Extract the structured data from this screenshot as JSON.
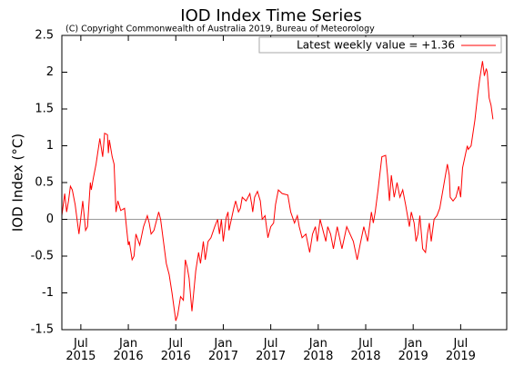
{
  "chart_data": {
    "type": "line",
    "title": "IOD Index Time Series",
    "subtitle": "(C) Copyright Commonwealth of Australia 2019, Bureau of Meteorology",
    "y_label": "IOD Index (°C)",
    "xlim": [
      2015.3,
      2019.985
    ],
    "ylim": [
      -1.5,
      2.5
    ],
    "yticks": [
      -1.5,
      -1,
      -0.5,
      0,
      0.5,
      1,
      1.5,
      2,
      2.5
    ],
    "xticks": [
      {
        "value": 2015.5,
        "label": "Jul 2015"
      },
      {
        "value": 2016.0,
        "label": "Jan 2016"
      },
      {
        "value": 2016.5,
        "label": "Jul 2016"
      },
      {
        "value": 2017.0,
        "label": "Jan 2017"
      },
      {
        "value": 2017.5,
        "label": "Jul 2017"
      },
      {
        "value": 2018.0,
        "label": "Jan 2018"
      },
      {
        "value": 2018.5,
        "label": "Jul 2018"
      },
      {
        "value": 2019.0,
        "label": "Jan 2019"
      },
      {
        "value": 2019.5,
        "label": "Jul 2019"
      }
    ],
    "zero_line": true,
    "legend": "top-right",
    "series": [
      {
        "name": "Latest weekly value = +1.36",
        "color": "#ff0000",
        "x": [
          2015.3,
          2015.33,
          2015.35,
          2015.37,
          2015.39,
          2015.41,
          2015.44,
          2015.48,
          2015.52,
          2015.55,
          2015.57,
          2015.6,
          2015.61,
          2015.63,
          2015.66,
          2015.7,
          2015.73,
          2015.75,
          2015.78,
          2015.79,
          2015.8,
          2015.83,
          2015.85,
          2015.87,
          2015.89,
          2015.92,
          2015.96,
          2016.0,
          2016.01,
          2016.04,
          2016.06,
          2016.08,
          2016.12,
          2016.16,
          2016.2,
          2016.22,
          2016.24,
          2016.27,
          2016.32,
          2016.34,
          2016.37,
          2016.4,
          2016.43,
          2016.46,
          2016.5,
          2016.52,
          2016.55,
          2016.58,
          2016.6,
          2016.62,
          2016.64,
          2016.67,
          2016.71,
          2016.74,
          2016.76,
          2016.79,
          2016.81,
          2016.84,
          2016.87,
          2016.91,
          2016.94,
          2016.96,
          2016.98,
          2017.0,
          2017.03,
          2017.05,
          2017.06,
          2017.11,
          2017.13,
          2017.16,
          2017.18,
          2017.2,
          2017.24,
          2017.28,
          2017.3,
          2017.31,
          2017.33,
          2017.36,
          2017.39,
          2017.41,
          2017.44,
          2017.47,
          2017.5,
          2017.53,
          2017.55,
          2017.58,
          2017.62,
          2017.68,
          2017.71,
          2017.75,
          2017.78,
          2017.8,
          2017.83,
          2017.87,
          2017.91,
          2017.94,
          2017.97,
          2017.99,
          2018.02,
          2018.05,
          2018.08,
          2018.1,
          2018.13,
          2018.16,
          2018.2,
          2018.25,
          2018.3,
          2018.37,
          2018.41,
          2018.44,
          2018.48,
          2018.52,
          2018.56,
          2018.58,
          2018.6,
          2018.63,
          2018.67,
          2018.71,
          2018.73,
          2018.75,
          2018.77,
          2018.8,
          2018.83,
          2018.86,
          2018.89,
          2018.92,
          2018.94,
          2018.96,
          2018.98,
          2019.01,
          2019.03,
          2019.05,
          2019.07,
          2019.1,
          2019.13,
          2019.15,
          2019.17,
          2019.19,
          2019.22,
          2019.25,
          2019.28,
          2019.32,
          2019.36,
          2019.38,
          2019.39,
          2019.42,
          2019.45,
          2019.48,
          2019.5,
          2019.52,
          2019.57,
          2019.58,
          2019.61,
          2019.65,
          2019.68,
          2019.7,
          2019.73,
          2019.75,
          2019.77,
          2019.78,
          2019.8,
          2019.82,
          2019.84
        ],
        "values": [
          0.05,
          0.35,
          0.1,
          0.25,
          0.45,
          0.4,
          0.2,
          -0.2,
          0.25,
          -0.15,
          -0.1,
          0.5,
          0.4,
          0.55,
          0.75,
          1.1,
          0.85,
          1.17,
          1.15,
          0.9,
          1.08,
          0.85,
          0.75,
          0.1,
          0.25,
          0.12,
          0.15,
          -0.35,
          -0.3,
          -0.55,
          -0.5,
          -0.2,
          -0.35,
          -0.1,
          0.05,
          -0.05,
          -0.2,
          -0.15,
          0.1,
          0.0,
          -0.3,
          -0.6,
          -0.75,
          -1.0,
          -1.38,
          -1.3,
          -1.05,
          -1.1,
          -0.55,
          -0.65,
          -0.8,
          -1.25,
          -0.7,
          -0.45,
          -0.6,
          -0.3,
          -0.55,
          -0.3,
          -0.25,
          -0.1,
          0.0,
          -0.2,
          0.0,
          -0.3,
          0.02,
          0.1,
          -0.15,
          0.15,
          0.25,
          0.1,
          0.15,
          0.3,
          0.25,
          0.35,
          0.2,
          0.1,
          0.3,
          0.38,
          0.25,
          0.0,
          0.05,
          -0.25,
          -0.1,
          -0.05,
          0.2,
          0.4,
          0.35,
          0.33,
          0.1,
          -0.05,
          0.05,
          -0.1,
          -0.25,
          -0.2,
          -0.45,
          -0.2,
          -0.1,
          -0.3,
          0.0,
          -0.15,
          -0.3,
          -0.1,
          -0.2,
          -0.4,
          -0.1,
          -0.4,
          -0.1,
          -0.3,
          -0.55,
          -0.35,
          -0.1,
          -0.3,
          0.1,
          -0.05,
          0.1,
          0.4,
          0.85,
          0.87,
          0.6,
          0.25,
          0.6,
          0.3,
          0.5,
          0.3,
          0.4,
          0.2,
          0.05,
          -0.1,
          0.1,
          -0.05,
          -0.3,
          -0.2,
          0.05,
          -0.4,
          -0.45,
          -0.2,
          -0.05,
          -0.3,
          0.0,
          0.05,
          0.15,
          0.45,
          0.75,
          0.6,
          0.3,
          0.25,
          0.3,
          0.45,
          0.3,
          0.7,
          1.0,
          0.95,
          1.0,
          1.35,
          1.7,
          1.9,
          2.15,
          1.95,
          2.05,
          2.0,
          1.65,
          1.55,
          1.36
        ]
      }
    ]
  }
}
